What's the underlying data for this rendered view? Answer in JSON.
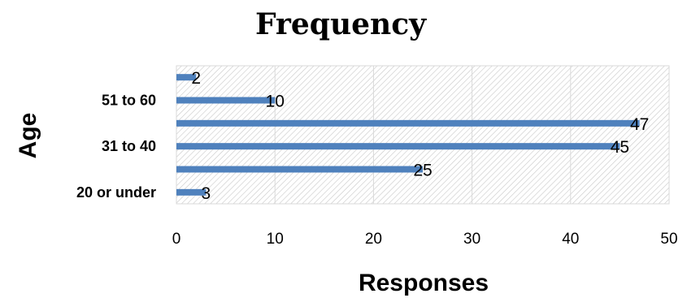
{
  "chart_data": {
    "type": "bar",
    "orientation": "horizontal",
    "title": "Frequency",
    "xlabel": "Responses",
    "ylabel": "Age",
    "categories": [
      "20 or under",
      "",
      "31 to 40",
      "",
      "51 to 60",
      ""
    ],
    "values": [
      3,
      25,
      45,
      47,
      10,
      2
    ],
    "xlim": [
      0,
      50
    ],
    "xticks": [
      0,
      10,
      20,
      30,
      40,
      50
    ],
    "grid": true,
    "legend": "none",
    "colors": {
      "bar": "#4f81bd",
      "hatch": "#bfbfbf"
    }
  }
}
